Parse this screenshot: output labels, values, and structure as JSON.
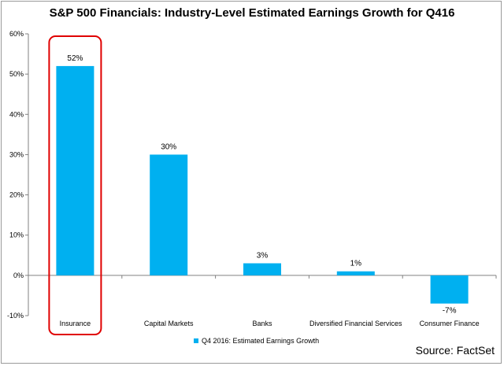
{
  "chart_data": {
    "type": "bar",
    "title": "S&P 500 Financials: Industry-Level Estimated Earnings Growth for Q416",
    "categories": [
      "Insurance",
      "Capital Markets",
      "Banks",
      "Diversified Financial Services",
      "Consumer Finance"
    ],
    "series": [
      {
        "name": "Q4 2016: Estimated Earnings Growth",
        "values": [
          52,
          30,
          3,
          1,
          -7
        ],
        "data_labels": [
          "52%",
          "30%",
          "3%",
          "1%",
          "-7%"
        ],
        "color": "#00B0F0"
      }
    ],
    "ylim": [
      -10,
      60
    ],
    "yticks": [
      -10,
      0,
      10,
      20,
      30,
      40,
      50,
      60
    ],
    "ytick_labels": [
      "-10%",
      "0%",
      "10%",
      "20%",
      "30%",
      "40%",
      "50%",
      "60%"
    ],
    "xlabel": "",
    "ylabel": "",
    "grid": false,
    "legend_position": "bottom",
    "highlight_category": "Insurance",
    "highlight_color": "#E00000",
    "source": "Source: FactSet"
  }
}
